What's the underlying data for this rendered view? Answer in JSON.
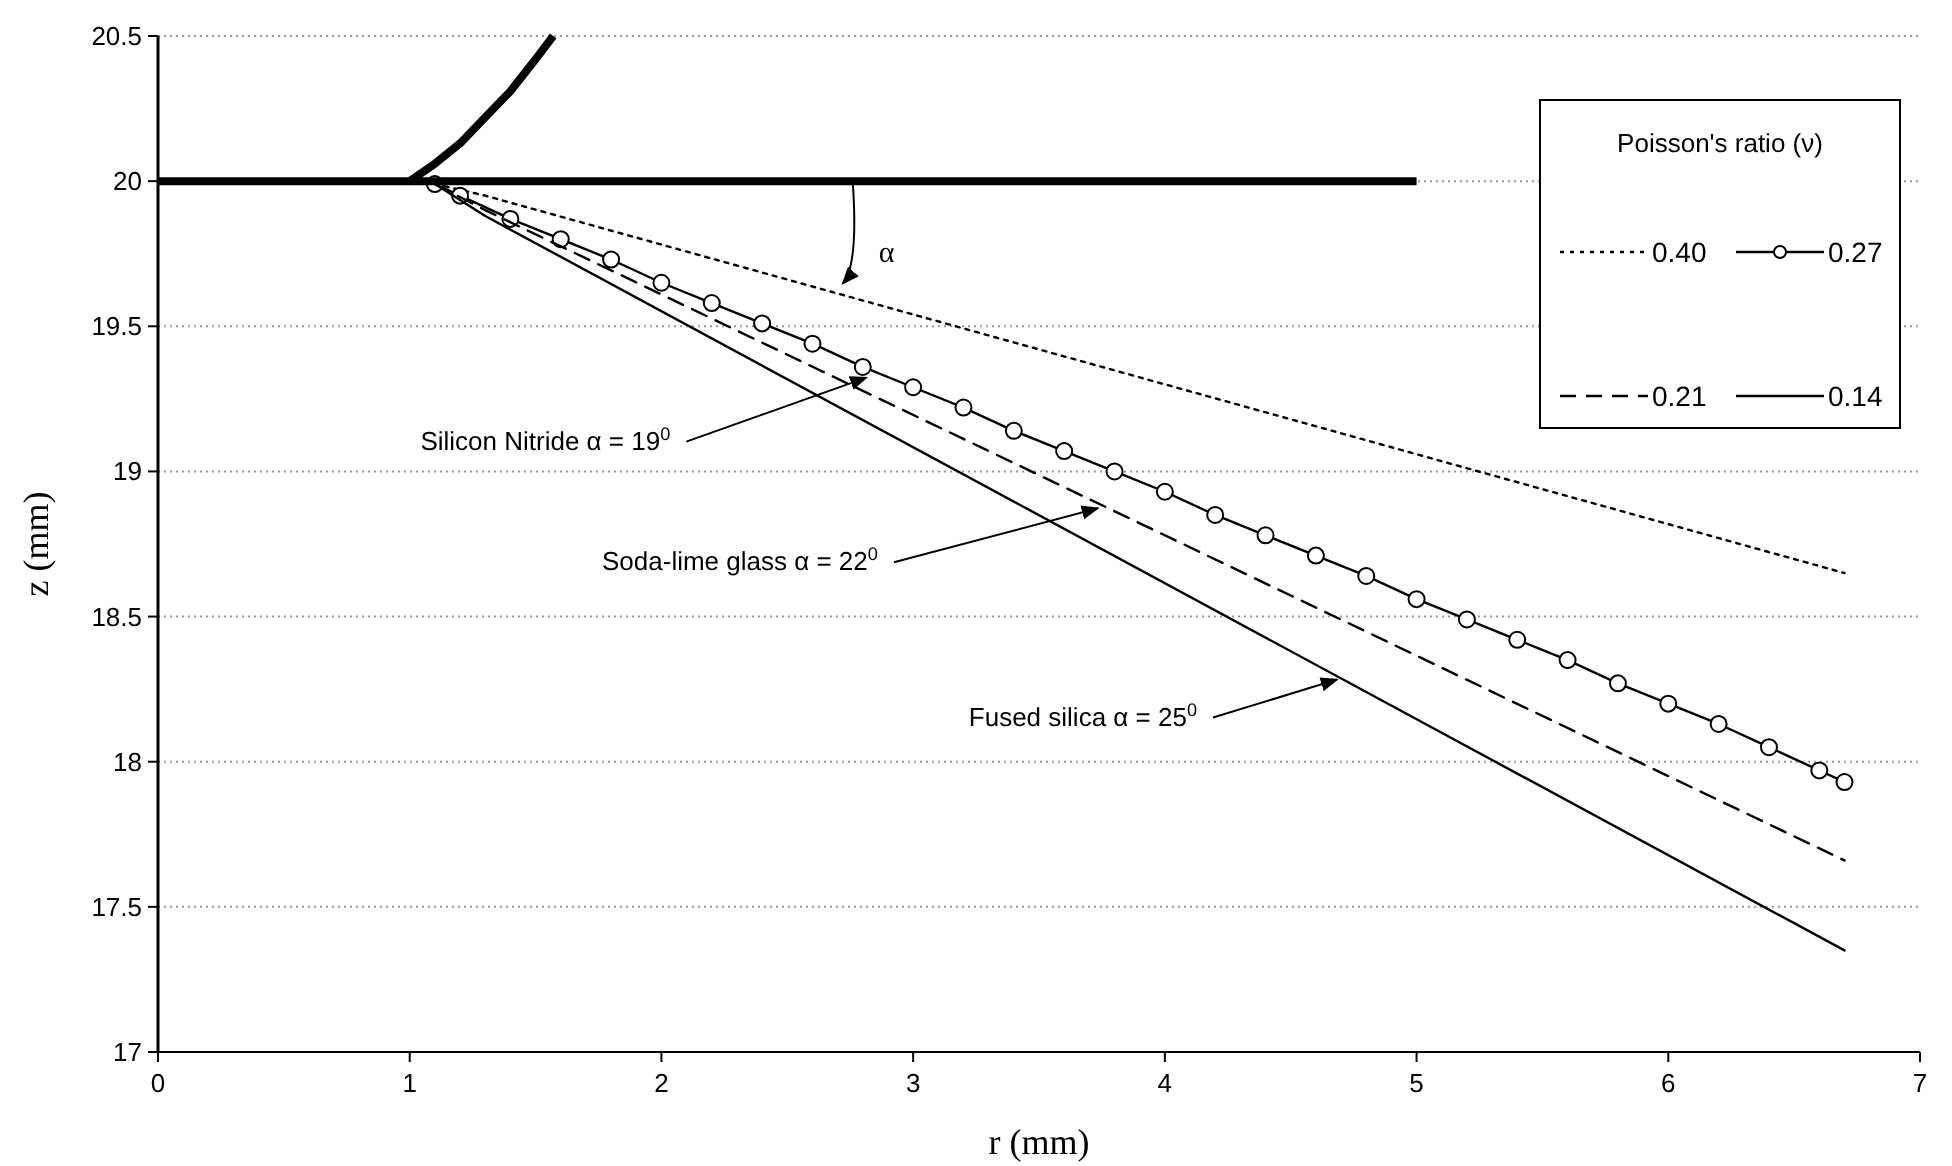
{
  "chart_data": {
    "type": "line",
    "xlabel": "r (mm)",
    "ylabel": "z (mm)",
    "legend_title": "Poisson's ratio (ν)",
    "legend": "top right",
    "grid": "y",
    "xlim": [
      0,
      7
    ],
    "xticks": [
      0,
      1,
      2,
      3,
      4,
      5,
      6,
      7
    ],
    "ylim": [
      17,
      20.5
    ],
    "yticks": [
      17,
      17.5,
      18,
      18.5,
      19,
      19.5,
      20,
      20.5
    ],
    "series": [
      {
        "name": "0.40",
        "color": "#000000",
        "line_style": "dotted",
        "marker": "none",
        "x": [
          1.1,
          1.3,
          6.7
        ],
        "values": [
          19.99,
          19.95,
          18.65
        ]
      },
      {
        "name": "0.27",
        "color": "#000000",
        "line_style": "solid",
        "marker": "circle",
        "x": [
          1.1,
          1.2,
          1.4,
          1.6,
          1.8,
          2.0,
          2.2,
          2.4,
          2.6,
          2.8,
          3.0,
          3.2,
          3.4,
          3.6,
          3.8,
          4.0,
          4.2,
          4.4,
          4.6,
          4.8,
          5.0,
          5.2,
          5.4,
          5.6,
          5.8,
          6.0,
          6.2,
          6.4,
          6.6,
          6.7
        ],
        "values": [
          19.99,
          19.95,
          19.87,
          19.8,
          19.73,
          19.65,
          19.58,
          19.51,
          19.44,
          19.36,
          19.29,
          19.22,
          19.14,
          19.07,
          19.0,
          18.93,
          18.85,
          18.78,
          18.71,
          18.64,
          18.56,
          18.49,
          18.42,
          18.35,
          18.27,
          18.2,
          18.13,
          18.05,
          17.97,
          17.93
        ]
      },
      {
        "name": "0.21",
        "color": "#000000",
        "line_style": "dashed",
        "marker": "none",
        "x": [
          1.1,
          1.3,
          6.7
        ],
        "values": [
          19.99,
          19.9,
          17.66
        ]
      },
      {
        "name": "0.14",
        "color": "#000000",
        "line_style": "solid",
        "marker": "none",
        "x": [
          1.1,
          1.3,
          6.7
        ],
        "values": [
          19.99,
          19.88,
          17.35
        ]
      },
      {
        "color": "#000000",
        "line_style": "solid",
        "marker": "none",
        "x": [
          0,
          5
        ],
        "values": [
          20,
          20
        ]
      },
      {
        "color": "#000000",
        "line_style": "solid",
        "marker": "none",
        "x": [
          1.0,
          1.1,
          1.2,
          1.3,
          1.4,
          1.5,
          1.57
        ],
        "values": [
          20,
          20.06,
          20.13,
          20.22,
          20.31,
          20.42,
          20.5
        ]
      }
    ],
    "annotations": [
      {
        "text": "Silicon Nitride   α = 19$^{0}$",
        "x": 2.83,
        "y": 19.33
      },
      {
        "text": "Soda-lime glass   α = 22$^{0}$",
        "x": 3.75,
        "y": 18.88
      },
      {
        "text": "Fused silica   α = 25$^{0}$",
        "x": 4.7,
        "y": 18.29
      },
      {
        "text": "α",
        "x": 2.72,
        "y": 19.64
      }
    ]
  }
}
